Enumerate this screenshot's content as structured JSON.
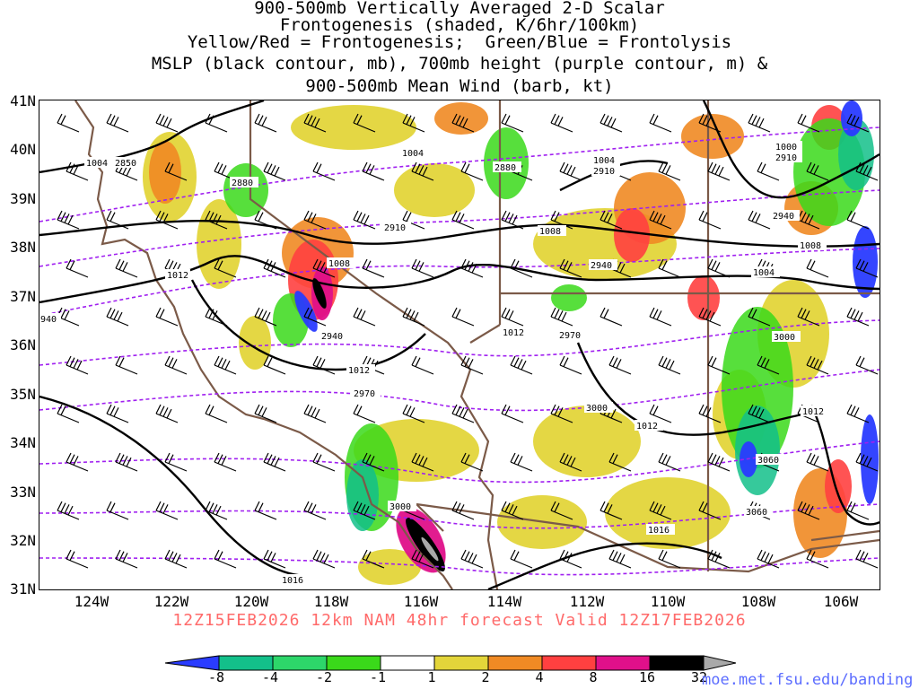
{
  "title_lines": [
    "900-500mb Vertically Averaged 2-D Scalar",
    "Frontogenesis (shaded, K/6hr/100km)",
    "Yellow/Red = Frontogenesis;  Green/Blue = Frontolysis",
    "MSLP (black contour, mb), 700mb height (purple contour, m) &",
    "900-500mb Mean Wind (barb, kt)"
  ],
  "lat_labels": [
    "41N",
    "40N",
    "39N",
    "38N",
    "37N",
    "36N",
    "35N",
    "34N",
    "33N",
    "32N",
    "31N"
  ],
  "lon_labels": [
    "124W",
    "122W",
    "120W",
    "118W",
    "116W",
    "114W",
    "112W",
    "110W",
    "108W",
    "106W"
  ],
  "valid_line": "12Z15FEB2026 12km NAM 48hr forecast Valid 12Z17FEB2026",
  "colorbar": {
    "labels": [
      "-8",
      "-4",
      "-2",
      "-1",
      "1",
      "2",
      "4",
      "8",
      "16",
      "32"
    ],
    "colors": [
      "#2a3cff",
      "#13c08a",
      "#2dd66a",
      "#3ad91a",
      "#ffffff",
      "#e3d53a",
      "#f08a24",
      "#ff4040",
      "#e0108a",
      "#000000",
      "#a9a9a9"
    ]
  },
  "credit": "moe.met.fsu.edu/banding",
  "mslp_labels": [
    "1004",
    "1004",
    "1004",
    "1000",
    "1008",
    "1008",
    "1008",
    "1004",
    "1012",
    "1012",
    "1012",
    "1012",
    "1012",
    "1016",
    "1016"
  ],
  "height_labels": [
    "2850",
    "2880",
    "2880",
    "2910",
    "2910",
    "2910",
    "2940",
    "2940",
    "2940",
    "940",
    "2970",
    "2970",
    "3000",
    "3000",
    "3000",
    "3060",
    "3060"
  ],
  "colors": {
    "mslp_contour": "#000000",
    "height_contour": "#a020f0",
    "state_borders": "#7b5a48",
    "title_text": "#000000",
    "valid_text": "#ff6a6a",
    "credit_text": "#5c6dff"
  }
}
